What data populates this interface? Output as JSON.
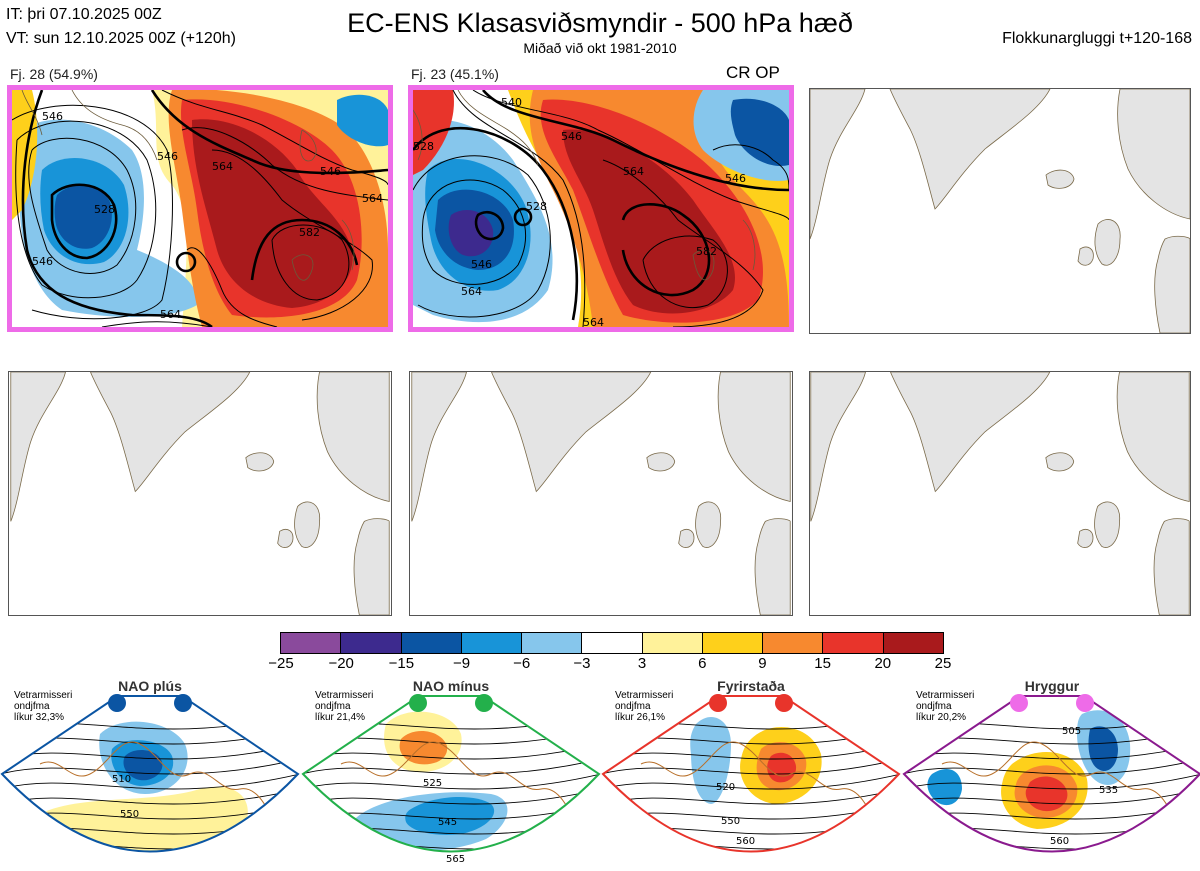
{
  "header": {
    "it_line": "IT: þri 07.10.2025 00Z",
    "vt_line": "VT: sun 12.10.2025 00Z  (+120h)",
    "title": "EC-ENS Klasasviðsmyndir - 500 hPa hæð",
    "subtitle": "Miðað við okt 1981-2010",
    "window": "Flokkunargluggi t+120-168"
  },
  "clusters": [
    {
      "label": "Fj. 28 (54.9%)",
      "contour_labels": [
        "546",
        "528",
        "546",
        "546",
        "564",
        "546",
        "564",
        "582",
        "564"
      ]
    },
    {
      "label": "Fj. 23 (45.1%)",
      "tag": "CR OP",
      "contour_labels": [
        "540",
        "528",
        "546",
        "564",
        "546",
        "528",
        "546",
        "564",
        "582",
        "564"
      ]
    }
  ],
  "colorbar": {
    "ticks": [
      "−25",
      "−20",
      "−15",
      "−9",
      "−6",
      "−3",
      "3",
      "6",
      "9",
      "15",
      "20",
      "25"
    ],
    "colors": [
      "#8a4a9c",
      "#3d2a8e",
      "#0b55a3",
      "#1894d8",
      "#86c6ec",
      "#ffffff",
      "#fff29a",
      "#fed01b",
      "#f7892f",
      "#e8342b",
      "#a91a1c"
    ]
  },
  "regimes": [
    {
      "name": "NAO plús",
      "note": [
        "Vetrarmisseri",
        "ondjfma",
        "líkur 32,3%"
      ],
      "dot_color": "#0b55a3",
      "frame_color": "#0b55a3",
      "labels": [
        "510",
        "550"
      ]
    },
    {
      "name": "NAO mínus",
      "note": [
        "Vetrarmisseri",
        "ondjfma",
        "líkur 21,4%"
      ],
      "dot_color": "#23b04b",
      "frame_color": "#23b04b",
      "labels": [
        "525",
        "545",
        "565"
      ]
    },
    {
      "name": "Fyrirstaða",
      "note": [
        "Vetrarmisseri",
        "ondjfma",
        "líkur 26,1%"
      ],
      "dot_color": "#e8342b",
      "frame_color": "#e8342b",
      "labels": [
        "520",
        "550",
        "560"
      ]
    },
    {
      "name": "Hryggur",
      "note": [
        "Vetrarmisseri",
        "ondjfma",
        "líkur 20,2%"
      ],
      "dot_color": "#ee6be8",
      "frame_color": "#8a1a8e",
      "labels": [
        "505",
        "535",
        "560"
      ]
    }
  ]
}
